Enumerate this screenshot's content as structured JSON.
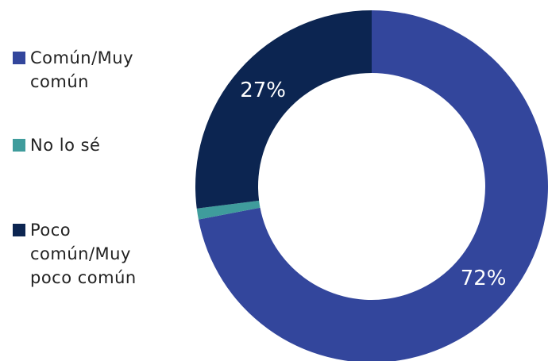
{
  "chart_data": {
    "type": "donut",
    "categories": [
      "Común/Muy común",
      "No lo sé",
      "Poco común/Muy poco común"
    ],
    "values": [
      72,
      1,
      27
    ],
    "value_labels": [
      "72%",
      null,
      "27%"
    ],
    "colors": [
      "#33469c",
      "#3f9c9c",
      "#0c2551"
    ],
    "legend": "left"
  }
}
